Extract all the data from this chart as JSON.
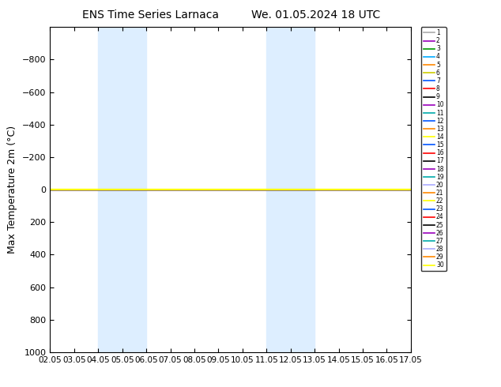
{
  "title_left": "ENS Time Series Larnaca",
  "title_right": "We. 01.05.2024 18 UTC",
  "ylabel": "Max Temperature 2m (°C)",
  "ylim": [
    -1000,
    1000
  ],
  "yticks": [
    -800,
    -600,
    -400,
    -200,
    0,
    200,
    400,
    600,
    800,
    1000
  ],
  "xtick_labels": [
    "02.05",
    "03.05",
    "04.05",
    "05.05",
    "06.05",
    "07.05",
    "08.05",
    "09.05",
    "10.05",
    "11.05",
    "12.05",
    "13.05",
    "14.05",
    "15.05",
    "16.05",
    "17.05"
  ],
  "xtick_positions": [
    0,
    1,
    2,
    3,
    4,
    5,
    6,
    7,
    8,
    9,
    10,
    11,
    12,
    13,
    14,
    15
  ],
  "shade_regions": [
    [
      2,
      3
    ],
    [
      3,
      4
    ],
    [
      9,
      10
    ],
    [
      10,
      11
    ]
  ],
  "shade_color": "#ddeeff",
  "member_colors": [
    "#aaaaaa",
    "#aa00aa",
    "#008800",
    "#00aaff",
    "#ff8800",
    "#ffcc00",
    "#0044ff",
    "#ff0000",
    "#000000",
    "#aa00aa",
    "#00aaaa",
    "#0044ff",
    "#ff8800",
    "#ffcc00",
    "#0044ff",
    "#ff0000",
    "#000000",
    "#aa00aa",
    "#00aaaa",
    "#88aaff",
    "#ff8800",
    "#ffff00",
    "#0044ff",
    "#ff0000",
    "#000000",
    "#aa00aa",
    "#00aaaa",
    "#88aaff",
    "#ff8800",
    "#ffff00"
  ],
  "n_members": 30,
  "background_color": "#ffffff",
  "invert_yaxis": true
}
